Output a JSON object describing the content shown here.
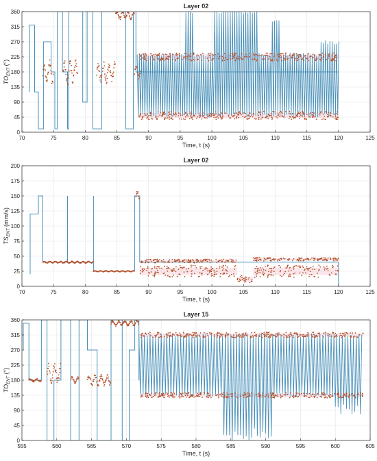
{
  "chart_data": [
    {
      "type": "line",
      "title": "Layer 02",
      "xlabel": "Time,  t (s)",
      "ylabel_main": "TO",
      "ylabel_sub": "ENT",
      "ylabel_unit": " (°)",
      "xlim": [
        70,
        125
      ],
      "ylim": [
        0,
        360
      ],
      "xticks": [
        70,
        75,
        80,
        85,
        90,
        95,
        100,
        105,
        110,
        115,
        120,
        125
      ],
      "yticks": [
        0,
        45,
        90,
        135,
        180,
        225,
        270,
        315,
        360
      ],
      "grid": true,
      "series": [
        {
          "kind": "line",
          "color": "#4a90b8",
          "x": [
            71.2,
            71.2,
            72.0,
            72.0,
            72.6,
            72.6,
            73.4,
            73.4,
            74.6,
            74.6,
            75.2,
            75.2,
            75.6,
            75.6,
            76.4,
            76.4,
            77.2,
            77.2,
            77.4,
            77.4,
            79.6,
            79.6,
            80.3,
            80.3,
            81.2,
            81.2,
            82.6,
            82.6,
            86.4,
            86.4,
            87.6,
            87.6,
            88.0,
            88.0,
            120.0
          ],
          "y": [
            120,
            320,
            320,
            120,
            120,
            10,
            10,
            270,
            270,
            180,
            180,
            10,
            10,
            360,
            360,
            180,
            180,
            10,
            10,
            360,
            360,
            90,
            90,
            360,
            360,
            10,
            10,
            360,
            360,
            10,
            10,
            360,
            360,
            180,
            180
          ],
          "oscillation": {
            "x_start": 88.2,
            "x_end": 120.2,
            "period": 0.35,
            "low": 50,
            "high": 232,
            "spikes": [
              [
                96.4,
                360
              ],
              [
                101.0,
                360
              ],
              [
                102.3,
                360
              ],
              [
                103.0,
                360
              ],
              [
                104.2,
                360
              ],
              [
                105.5,
                360
              ],
              [
                106.8,
                360
              ],
              [
                110.0,
                330
              ]
            ],
            "late_high": 270
          }
        },
        {
          "kind": "scatter",
          "color": "#b5532d",
          "segments": [
            {
              "x": [
                73.3,
                75.0
              ],
              "base": 180,
              "amp": 70
            },
            {
              "x": [
                76.5,
                78.8
              ],
              "base": 180,
              "amp": 70
            },
            {
              "x": [
                81.8,
                84.8
              ],
              "base": 180,
              "amp": 60
            },
            {
              "x": [
                84.8,
                87.8
              ],
              "base": 350,
              "amp": 25
            },
            {
              "x": [
                87.8,
                88.8
              ],
              "base": 180,
              "amp": 40
            }
          ],
          "bands": [
            {
              "x": [
                88.5,
                120.0
              ],
              "level": 225,
              "spread": 12
            },
            {
              "x": [
                88.5,
                120.0
              ],
              "level": 50,
              "spread": 12
            }
          ],
          "highlight": "#f2b8c6"
        }
      ]
    },
    {
      "type": "line",
      "title": "Layer 02",
      "xlabel": "Time,  t (s)",
      "ylabel_main": "TS",
      "ylabel_sub": "ENT",
      "ylabel_unit": " (mm/s)",
      "xlim": [
        70,
        125
      ],
      "ylim": [
        0,
        200
      ],
      "xticks": [
        70,
        75,
        80,
        85,
        90,
        95,
        100,
        105,
        110,
        115,
        120,
        125
      ],
      "yticks": [
        0,
        25,
        50,
        75,
        100,
        125,
        150,
        175,
        200
      ],
      "grid": true,
      "series": [
        {
          "kind": "line",
          "color": "#4a90b8",
          "x": [
            71.3,
            71.3,
            72.6,
            72.6,
            73.3,
            73.3,
            77.2,
            77.2,
            77.2,
            81.3,
            81.3,
            81.3,
            87.8,
            87.8,
            88.6,
            88.6,
            120.0
          ],
          "y": [
            20,
            120,
            120,
            150,
            150,
            40,
            40,
            150,
            40,
            40,
            150,
            25,
            25,
            150,
            150,
            40,
            40
          ],
          "drop_to_zero": [
            [
              120.0,
              0
            ]
          ]
        },
        {
          "kind": "scatter",
          "color": "#b5532d",
          "segments": [
            {
              "x": [
                73.3,
                81.3
              ],
              "base": 40,
              "amp": 3
            },
            {
              "x": [
                81.3,
                87.8
              ],
              "base": 25,
              "amp": 2
            },
            {
              "x": [
                88.0,
                88.6
              ],
              "base": 150,
              "amp": 15
            }
          ],
          "bands": [
            {
              "x": [
                88.6,
                104.0
              ],
              "level": 42,
              "spread": 3
            },
            {
              "x": [
                88.6,
                104.0
              ],
              "level": 25,
              "spread": 10
            },
            {
              "x": [
                104.0,
                106.5
              ],
              "level": 12,
              "spread": 6
            },
            {
              "x": [
                106.5,
                120.0
              ],
              "level": 45,
              "spread": 3
            },
            {
              "x": [
                106.5,
                120.0
              ],
              "level": 25,
              "spread": 10
            }
          ],
          "highlight": "#f2b8c6"
        }
      ]
    },
    {
      "type": "line",
      "title": "Layer 15",
      "xlabel": "Time,  t (s)",
      "ylabel_main": "TO",
      "ylabel_sub": "ENT",
      "ylabel_unit": " (°)",
      "xlim": [
        555,
        605
      ],
      "ylim": [
        0,
        360
      ],
      "xticks": [
        555,
        560,
        565,
        570,
        575,
        580,
        585,
        590,
        595,
        600,
        605
      ],
      "yticks": [
        0,
        45,
        90,
        135,
        180,
        225,
        270,
        315,
        360
      ],
      "grid": true,
      "series": [
        {
          "kind": "line",
          "color": "#4a90b8",
          "x": [
            555.2,
            555.2,
            556.0,
            556.0,
            557.8,
            557.8,
            558.6,
            558.6,
            559.6,
            559.6,
            560.6,
            560.6,
            562.0,
            562.0,
            563.2,
            563.2,
            564.4,
            564.4,
            565.8,
            565.8,
            567.8,
            567.8,
            569.4,
            569.4,
            570.4,
            570.4,
            571.2,
            571.2,
            571.8,
            571.8
          ],
          "y": [
            270,
            350,
            350,
            180,
            180,
            360,
            360,
            0,
            0,
            180,
            180,
            360,
            360,
            0,
            0,
            360,
            360,
            270,
            270,
            0,
            0,
            360,
            360,
            0,
            0,
            270,
            270,
            360,
            360,
            180
          ],
          "oscillation": {
            "x_start": 571.8,
            "x_end": 604.0,
            "period": 0.4,
            "low": 135,
            "high": 315,
            "deep": [
              [
                584.0,
                591.0,
                0
              ],
              [
                600.0,
                604.0,
                80
              ]
            ]
          }
        },
        {
          "kind": "scatter",
          "color": "#b5532d",
          "segments": [
            {
              "x": [
                556.0,
                557.8
              ],
              "base": 180,
              "amp": 10
            },
            {
              "x": [
                558.6,
                560.6
              ],
              "base": 200,
              "amp": 60
            },
            {
              "x": [
                562.0,
                563.2
              ],
              "base": 180,
              "amp": 20
            },
            {
              "x": [
                564.4,
                567.8
              ],
              "base": 180,
              "amp": 30
            },
            {
              "x": [
                567.8,
                571.8
              ],
              "base": 350,
              "amp": 15
            }
          ],
          "bands": [
            {
              "x": [
                572.0,
                604.0
              ],
              "level": 315,
              "spread": 8
            },
            {
              "x": [
                572.0,
                604.0
              ],
              "level": 135,
              "spread": 8
            }
          ],
          "highlight": "#f2b8c6"
        }
      ]
    }
  ]
}
